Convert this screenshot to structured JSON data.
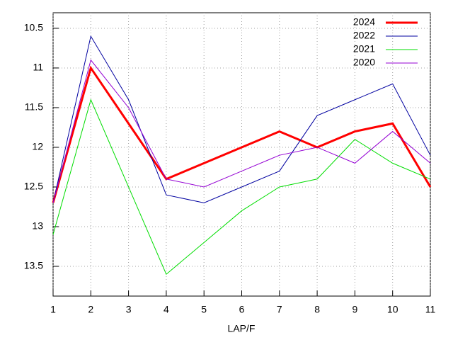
{
  "chart_data": {
    "type": "line",
    "x_label": "LAP/F",
    "x": [
      1,
      2,
      3,
      4,
      5,
      6,
      7,
      8,
      9,
      10,
      11
    ],
    "series": [
      {
        "name": "2024",
        "color": "#ff0000",
        "width": 3,
        "values": [
          12.7,
          11.0,
          11.7,
          12.4,
          12.2,
          12.0,
          11.8,
          12.0,
          11.8,
          11.7,
          12.5
        ]
      },
      {
        "name": "2022",
        "color": "#0000a0",
        "width": 1,
        "values": [
          12.7,
          10.6,
          11.4,
          12.6,
          12.7,
          12.5,
          12.3,
          11.6,
          11.4,
          11.2,
          12.1
        ]
      },
      {
        "name": "2021",
        "color": "#00dd00",
        "width": 1,
        "values": [
          13.1,
          11.4,
          12.5,
          13.6,
          13.2,
          12.8,
          12.5,
          12.4,
          11.9,
          12.2,
          12.4
        ]
      },
      {
        "name": "2020",
        "color": "#9400d3",
        "width": 1,
        "values": [
          12.7,
          10.9,
          11.5,
          12.4,
          12.5,
          12.3,
          12.1,
          12.0,
          12.2,
          11.8,
          12.2
        ]
      }
    ],
    "xlim": [
      1,
      11
    ],
    "xticks": [
      1,
      2,
      3,
      4,
      5,
      6,
      7,
      8,
      9,
      10,
      11
    ],
    "ylim": [
      13.875,
      10.304
    ],
    "yticks": [
      10.5,
      11,
      11.5,
      12,
      12.5,
      13,
      13.5
    ],
    "grid": true,
    "legend": "top-right"
  }
}
